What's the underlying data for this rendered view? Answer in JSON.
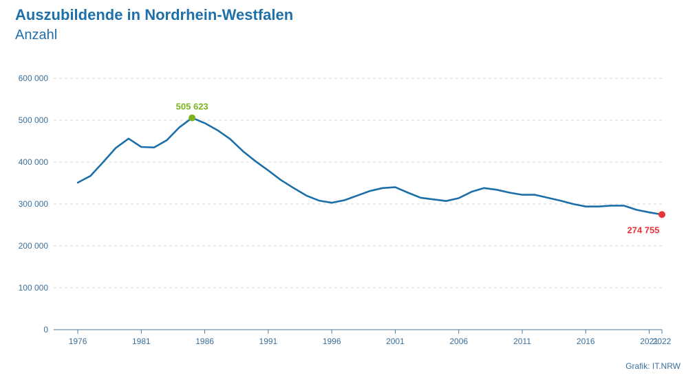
{
  "chart_data": {
    "type": "line",
    "title": "Auszubildende in Nordrhein-Westfalen",
    "subtitle": "Anzahl",
    "credit": "Grafik: IT.NRW",
    "ylim": [
      0,
      600000
    ],
    "xlim": [
      1974.1,
      2022
    ],
    "yticks": [
      0,
      100000,
      200000,
      300000,
      400000,
      500000,
      600000
    ],
    "ytick_labels": [
      "0",
      "100 000",
      "200 000",
      "300 000",
      "400 000",
      "500 000",
      "600 000"
    ],
    "xticks": [
      1976,
      1981,
      1986,
      1991,
      1996,
      2001,
      2006,
      2011,
      2016,
      2021,
      2022
    ],
    "grid": true,
    "colors": {
      "line": "#1a6fa8",
      "max": "#7ab51d",
      "last": "#e8343a",
      "grid": "#d9d9d9",
      "axis": "#3a6f9a"
    },
    "series": [
      {
        "x": [
          1976,
          1977,
          1978,
          1979,
          1980,
          1981,
          1982,
          1983,
          1984,
          1985,
          1986,
          1987,
          1988,
          1989,
          1990,
          1991,
          1992,
          1993,
          1994,
          1995,
          1996,
          1997,
          1998,
          1999,
          2000,
          2001,
          2002,
          2003,
          2004,
          2005,
          2006,
          2007,
          2008,
          2009,
          2010,
          2011,
          2012,
          2013,
          2014,
          2015,
          2016,
          2017,
          2018,
          2019,
          2020,
          2021,
          2022
        ],
        "y": [
          351000,
          367000,
          400000,
          434000,
          456000,
          436000,
          435000,
          452000,
          483000,
          505623,
          493000,
          476000,
          455000,
          426000,
          402000,
          380000,
          357000,
          338000,
          320000,
          308000,
          303000,
          309000,
          320000,
          331000,
          338000,
          340000,
          327000,
          315000,
          311000,
          307000,
          314000,
          329000,
          338000,
          334000,
          327000,
          322000,
          322000,
          315000,
          308000,
          300000,
          294000,
          294000,
          296000,
          296000,
          286000,
          280000,
          274755
        ]
      }
    ],
    "annotations": [
      {
        "x": 1985,
        "y": 505623,
        "label": "505 623",
        "kind": "max"
      },
      {
        "x": 2022,
        "y": 274755,
        "label": "274 755",
        "kind": "last"
      }
    ]
  }
}
